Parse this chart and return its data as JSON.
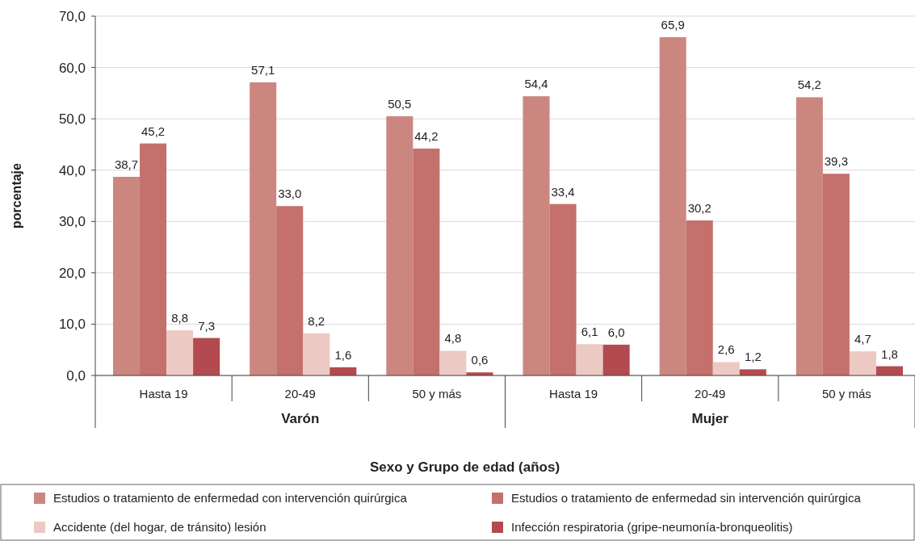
{
  "chart_data": {
    "type": "bar",
    "ylabel": "porcentaje",
    "xlabel": "Sexo y Grupo de edad (años)",
    "categories": [
      "Hasta 19",
      "20-49",
      "50 y más",
      "Hasta 19",
      "20-49",
      "50 y más"
    ],
    "annotations": [
      "Varón",
      "Mujer"
    ],
    "series": [
      {
        "name": "Estudios o tratamiento de enfermedad con intervención quirúrgica",
        "color": "#cc8680",
        "values": [
          38.7,
          57.1,
          50.5,
          54.4,
          65.9,
          54.2
        ],
        "value_labels": [
          "38,7",
          "57,1",
          "50,5",
          "54,4",
          "65,9",
          "54,2"
        ]
      },
      {
        "name": "Estudios o tratamiento de enfermedad sin intervención quirúrgica",
        "color": "#c4706c",
        "values": [
          45.2,
          33.0,
          44.2,
          33.4,
          30.2,
          39.3
        ],
        "value_labels": [
          "45,2",
          "33,0",
          "44,2",
          "33,4",
          "30,2",
          "39,3"
        ]
      },
      {
        "name": "Accidente (del hogar, de tránsito) lesión",
        "color": "#ecc9c2",
        "values": [
          8.8,
          8.2,
          4.8,
          6.1,
          2.6,
          4.7
        ],
        "value_labels": [
          "8,8",
          "8,2",
          "4,8",
          "6,1",
          "2,6",
          "4,7"
        ]
      },
      {
        "name": "Infección respiratoria (gripe-neumonía-bronqueolitis)",
        "color": "#b34a50",
        "values": [
          7.3,
          1.6,
          0.6,
          6.0,
          1.2,
          1.8
        ],
        "value_labels": [
          "7,3",
          "1,6",
          "0,6",
          "6,0",
          "1,2",
          "1,8"
        ]
      }
    ],
    "ylim": [
      0,
      70
    ],
    "yticks": [
      {
        "value": 0,
        "label": "0,0"
      },
      {
        "value": 10,
        "label": "10,0"
      },
      {
        "value": 20,
        "label": "20,0"
      },
      {
        "value": 30,
        "label": "30,0"
      },
      {
        "value": 40,
        "label": "40,0"
      },
      {
        "value": 50,
        "label": "50,0"
      },
      {
        "value": 60,
        "label": "60,0"
      },
      {
        "value": 70,
        "label": "70,0"
      }
    ],
    "grid": "y",
    "legend": "bottom"
  }
}
